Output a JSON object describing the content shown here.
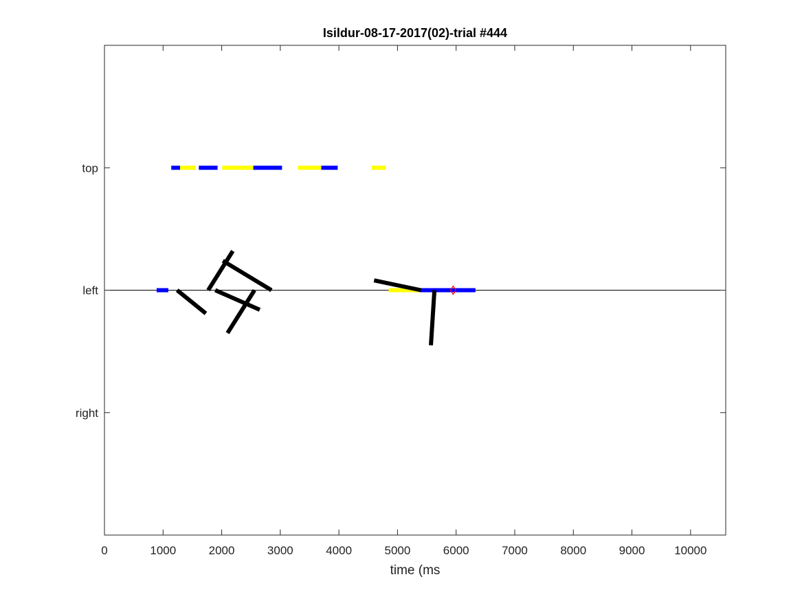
{
  "chart_data": {
    "type": "line",
    "title": "Isildur-08-17-2017(02)-trial #444",
    "xlabel": "time (ms",
    "ylabel": "",
    "xlim": [
      0,
      10600
    ],
    "xticks": [
      0,
      1000,
      2000,
      3000,
      4000,
      5000,
      6000,
      7000,
      8000,
      9000,
      10000
    ],
    "xtick_labels": [
      "0",
      "1000",
      "2000",
      "3000",
      "4000",
      "5000",
      "6000",
      "7000",
      "8000",
      "9000",
      "10000"
    ],
    "ylim": [
      -2,
      2
    ],
    "yticks": [
      1,
      0,
      -1
    ],
    "ytick_labels": [
      "top",
      "left",
      "right"
    ],
    "grid": false,
    "colors": {
      "blue": "#0000ff",
      "yellow": "#ffff00",
      "black": "#000000",
      "red": "#ff0000"
    },
    "reference_lines": [
      {
        "name": "left-baseline",
        "y": 0,
        "x": [
          0,
          10600
        ]
      }
    ],
    "segments": [
      {
        "name": "top-blue-1",
        "color": "blue",
        "x": [
          1140,
          1290
        ],
        "y": [
          1,
          1
        ]
      },
      {
        "name": "top-yellow-1",
        "color": "yellow",
        "x": [
          1290,
          1560
        ],
        "y": [
          1,
          1
        ]
      },
      {
        "name": "top-blue-2",
        "color": "blue",
        "x": [
          1610,
          1930
        ],
        "y": [
          1,
          1
        ]
      },
      {
        "name": "top-yellow-2",
        "color": "yellow",
        "x": [
          2010,
          2540
        ],
        "y": [
          1,
          1
        ]
      },
      {
        "name": "top-blue-3",
        "color": "blue",
        "x": [
          2540,
          3030
        ],
        "y": [
          1,
          1
        ]
      },
      {
        "name": "top-yellow-3",
        "color": "yellow",
        "x": [
          3300,
          3700
        ],
        "y": [
          1,
          1
        ]
      },
      {
        "name": "top-blue-4",
        "color": "blue",
        "x": [
          3700,
          3980
        ],
        "y": [
          1,
          1
        ]
      },
      {
        "name": "top-yellow-4",
        "color": "yellow",
        "x": [
          4560,
          4800
        ],
        "y": [
          1,
          1
        ]
      },
      {
        "name": "left-blue-1",
        "color": "blue",
        "x": [
          890,
          1090
        ],
        "y": [
          0,
          0
        ]
      },
      {
        "name": "left-yellow-1",
        "color": "yellow",
        "x": [
          4850,
          5390
        ],
        "y": [
          0,
          0
        ]
      },
      {
        "name": "left-blue-2",
        "color": "blue",
        "x": [
          5390,
          6330
        ],
        "y": [
          0,
          0
        ]
      }
    ],
    "strokes": [
      {
        "name": "stroke-1",
        "x": [
          1240,
          1730
        ],
        "y": [
          0,
          -0.19
        ]
      },
      {
        "name": "stroke-2",
        "x": [
          1770,
          2190
        ],
        "y": [
          0,
          0.32
        ]
      },
      {
        "name": "stroke-3",
        "x": [
          2020,
          2850
        ],
        "y": [
          0.24,
          0
        ]
      },
      {
        "name": "stroke-4",
        "x": [
          1890,
          2650
        ],
        "y": [
          0,
          -0.16
        ]
      },
      {
        "name": "stroke-5",
        "x": [
          2100,
          2560
        ],
        "y": [
          -0.35,
          0
        ]
      },
      {
        "name": "stroke-6",
        "x": [
          4600,
          5400
        ],
        "y": [
          0.08,
          0
        ]
      },
      {
        "name": "stroke-7",
        "x": [
          5570,
          5630
        ],
        "y": [
          -0.45,
          0
        ]
      }
    ],
    "markers": [
      {
        "name": "red-diamond",
        "shape": "diamond",
        "color": "red",
        "x": 5950,
        "y": 0
      }
    ]
  }
}
